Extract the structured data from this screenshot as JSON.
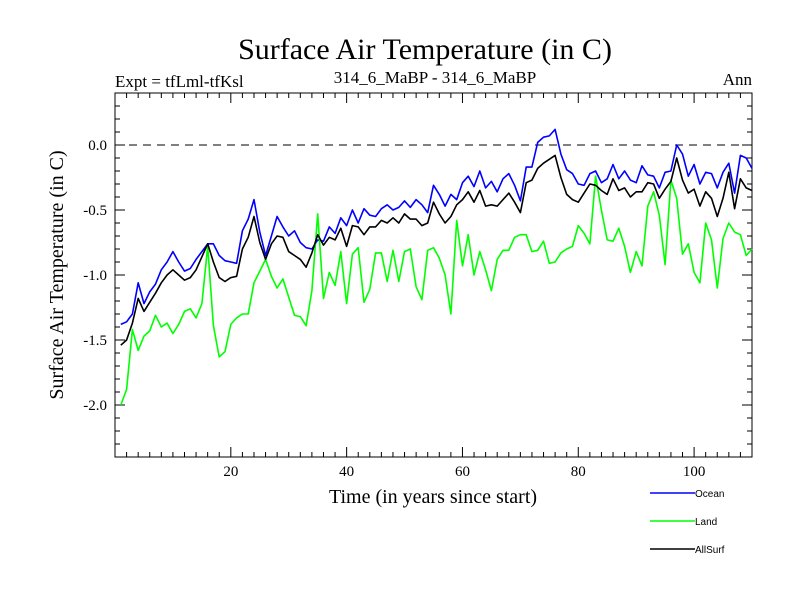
{
  "chart_data": {
    "type": "line",
    "title": "Surface Air Temperature (in C)",
    "subtitle_left": "Expt = tfLml-tfKsl",
    "subtitle_center": "314_6_MaBP - 314_6_MaBP",
    "subtitle_right": "Ann",
    "xlabel": "Time (in years since start)",
    "ylabel": "Surface Air Temperature (in C)",
    "xlim": [
      0,
      110
    ],
    "ylim": [
      -2.4,
      0.4
    ],
    "xticks": [
      20,
      40,
      60,
      80,
      100
    ],
    "xtick_labels": [
      "20",
      "40",
      "60",
      "80",
      "100"
    ],
    "yticks": [
      0.0,
      -0.5,
      -1.0,
      -1.5,
      -2.0
    ],
    "ytick_labels": [
      "0.0",
      "-0.5",
      "-1.0",
      "-1.5",
      "-2.0"
    ],
    "reference_line": 0.0,
    "x": [
      1,
      2,
      3,
      4,
      5,
      6,
      7,
      8,
      9,
      10,
      11,
      12,
      13,
      14,
      15,
      16,
      17,
      18,
      19,
      20,
      21,
      22,
      23,
      24,
      25,
      26,
      27,
      28,
      29,
      30,
      31,
      32,
      33,
      34,
      35,
      36,
      37,
      38,
      39,
      40,
      41,
      42,
      43,
      44,
      45,
      46,
      47,
      48,
      49,
      50,
      51,
      52,
      53,
      54,
      55,
      56,
      57,
      58,
      59,
      60,
      61,
      62,
      63,
      64,
      65,
      66,
      67,
      68,
      69,
      70,
      71,
      72,
      73,
      74,
      75,
      76,
      77,
      78,
      79,
      80,
      81,
      82,
      83,
      84,
      85,
      86,
      87,
      88,
      89,
      90,
      91,
      92,
      93,
      94,
      95,
      96,
      97,
      98,
      99,
      100,
      101,
      102,
      103,
      104,
      105,
      106,
      107,
      108,
      109,
      110
    ],
    "series": [
      {
        "name": "Ocean",
        "color": "#0000ff",
        "values": [
          -1.38,
          -1.36,
          -1.3,
          -1.06,
          -1.22,
          -1.13,
          -1.07,
          -0.96,
          -0.9,
          -0.82,
          -0.9,
          -0.97,
          -0.95,
          -0.88,
          -0.82,
          -0.76,
          -0.76,
          -0.85,
          -0.89,
          -0.9,
          -0.91,
          -0.66,
          -0.57,
          -0.42,
          -0.67,
          -0.85,
          -0.7,
          -0.55,
          -0.63,
          -0.7,
          -0.66,
          -0.75,
          -0.79,
          -0.8,
          -0.73,
          -0.74,
          -0.63,
          -0.68,
          -0.56,
          -0.62,
          -0.5,
          -0.6,
          -0.49,
          -0.54,
          -0.55,
          -0.49,
          -0.46,
          -0.5,
          -0.48,
          -0.43,
          -0.48,
          -0.42,
          -0.46,
          -0.52,
          -0.31,
          -0.38,
          -0.47,
          -0.38,
          -0.42,
          -0.29,
          -0.24,
          -0.32,
          -0.2,
          -0.33,
          -0.28,
          -0.36,
          -0.26,
          -0.22,
          -0.31,
          -0.43,
          -0.17,
          -0.17,
          0.02,
          0.06,
          0.07,
          0.12,
          -0.07,
          -0.19,
          -0.22,
          -0.3,
          -0.31,
          -0.22,
          -0.2,
          -0.29,
          -0.26,
          -0.15,
          -0.26,
          -0.2,
          -0.27,
          -0.29,
          -0.16,
          -0.23,
          -0.24,
          -0.33,
          -0.21,
          -0.2,
          0.0,
          -0.07,
          -0.24,
          -0.15,
          -0.3,
          -0.21,
          -0.22,
          -0.33,
          -0.21,
          -0.14,
          -0.37,
          -0.08,
          -0.1,
          -0.18
        ]
      },
      {
        "name": "Land",
        "color": "#00ff00",
        "values": [
          -2.0,
          -1.88,
          -1.42,
          -1.58,
          -1.47,
          -1.43,
          -1.31,
          -1.4,
          -1.37,
          -1.45,
          -1.38,
          -1.28,
          -1.26,
          -1.33,
          -1.22,
          -0.78,
          -1.39,
          -1.63,
          -1.59,
          -1.38,
          -1.33,
          -1.3,
          -1.3,
          -1.06,
          -0.97,
          -0.88,
          -1.01,
          -1.1,
          -1.03,
          -1.17,
          -1.31,
          -1.32,
          -1.39,
          -1.12,
          -0.53,
          -1.18,
          -0.98,
          -1.08,
          -0.82,
          -1.22,
          -0.84,
          -0.79,
          -1.21,
          -1.11,
          -0.83,
          -0.83,
          -1.05,
          -0.81,
          -1.05,
          -0.82,
          -0.8,
          -1.09,
          -1.19,
          -0.81,
          -0.79,
          -0.87,
          -1.0,
          -1.3,
          -0.58,
          -0.93,
          -0.69,
          -1.0,
          -0.82,
          -0.96,
          -1.12,
          -0.88,
          -0.81,
          -0.81,
          -0.71,
          -0.69,
          -0.69,
          -0.82,
          -0.81,
          -0.74,
          -0.91,
          -0.9,
          -0.83,
          -0.8,
          -0.78,
          -0.62,
          -0.68,
          -0.76,
          -0.24,
          -0.5,
          -0.73,
          -0.74,
          -0.64,
          -0.78,
          -0.98,
          -0.82,
          -0.93,
          -0.47,
          -0.36,
          -0.54,
          -0.92,
          -0.27,
          -0.41,
          -0.84,
          -0.76,
          -0.98,
          -1.06,
          -0.6,
          -0.73,
          -1.1,
          -0.72,
          -0.6,
          -0.67,
          -0.69,
          -0.85,
          -0.8
        ]
      },
      {
        "name": "AllSurf",
        "color": "#000000",
        "values": [
          -1.54,
          -1.5,
          -1.37,
          -1.18,
          -1.28,
          -1.21,
          -1.14,
          -1.06,
          -1.0,
          -0.96,
          -1.0,
          -1.04,
          -1.02,
          -0.96,
          -0.86,
          -0.76,
          -0.9,
          -1.02,
          -1.05,
          -1.02,
          -1.01,
          -0.8,
          -0.71,
          -0.55,
          -0.75,
          -0.88,
          -0.76,
          -0.7,
          -0.71,
          -0.82,
          -0.85,
          -0.88,
          -0.94,
          -0.83,
          -0.69,
          -0.77,
          -0.71,
          -0.73,
          -0.64,
          -0.78,
          -0.62,
          -0.63,
          -0.69,
          -0.63,
          -0.63,
          -0.58,
          -0.6,
          -0.56,
          -0.6,
          -0.53,
          -0.57,
          -0.57,
          -0.62,
          -0.6,
          -0.44,
          -0.53,
          -0.6,
          -0.55,
          -0.46,
          -0.42,
          -0.36,
          -0.44,
          -0.35,
          -0.47,
          -0.46,
          -0.47,
          -0.42,
          -0.37,
          -0.44,
          -0.52,
          -0.29,
          -0.27,
          -0.18,
          -0.14,
          -0.11,
          -0.08,
          -0.25,
          -0.38,
          -0.42,
          -0.44,
          -0.37,
          -0.3,
          -0.31,
          -0.35,
          -0.38,
          -0.26,
          -0.35,
          -0.33,
          -0.4,
          -0.36,
          -0.36,
          -0.29,
          -0.3,
          -0.41,
          -0.34,
          -0.28,
          -0.1,
          -0.27,
          -0.37,
          -0.34,
          -0.47,
          -0.36,
          -0.41,
          -0.55,
          -0.41,
          -0.21,
          -0.49,
          -0.26,
          -0.33,
          -0.35
        ]
      }
    ]
  }
}
